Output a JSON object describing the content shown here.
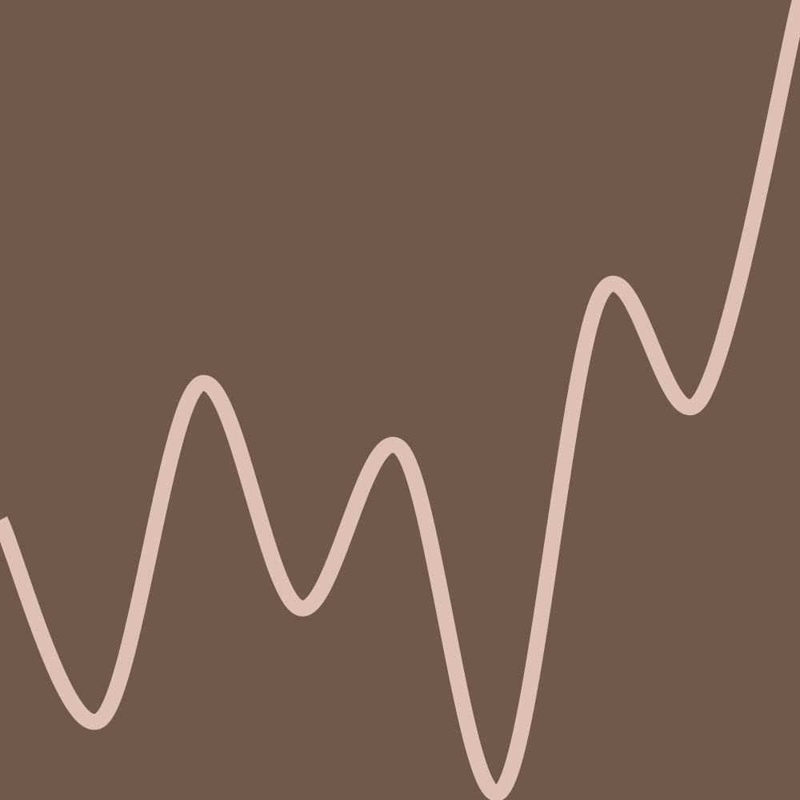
{
  "chart_data": {
    "type": "line",
    "x": [
      0,
      1,
      2,
      3,
      4,
      5,
      6,
      7,
      8
    ],
    "series": [
      {
        "values": [
          0.35,
          0.1,
          0.52,
          0.24,
          0.44,
          0.01,
          0.63,
          0.5,
          1.0
        ]
      }
    ],
    "xlim": [
      0,
      8
    ],
    "ylim": [
      0,
      1
    ],
    "grid": false,
    "axes_visible": false,
    "legend": "none",
    "colors": {
      "background": "#70584c",
      "line": "#dfc0b4"
    }
  }
}
